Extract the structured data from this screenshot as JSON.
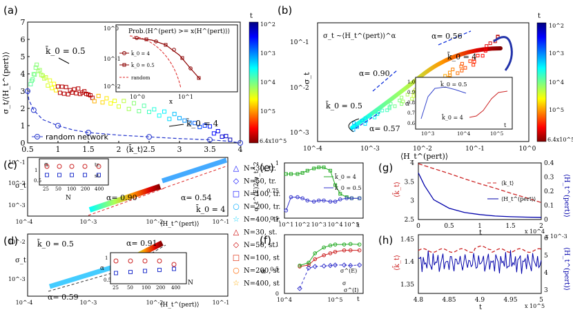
{
  "chart_data": [
    {
      "panel": "(a)",
      "type": "scatter",
      "xlabel": "⟨k̄_t⟩",
      "ylabel": "σ_t/⟨H_t^(pert)⟩",
      "xlim": [
        0.5,
        4
      ],
      "ylim": [
        0,
        7
      ],
      "xticks": [
        "0.5",
        "1",
        "1.5",
        "2",
        "2.5",
        "3",
        "3.5",
        "4"
      ],
      "yticks": [
        "0",
        "1",
        "2",
        "3",
        "4",
        "5",
        "6",
        "7"
      ],
      "annotations": [
        "k̄_0 = 0.5",
        "k̄_0 = 4"
      ],
      "legend": "random network",
      "series": [
        {
          "name": "random network",
          "style": "dashed-circles",
          "x": [
            0.5,
            0.52,
            0.6,
            0.75,
            1.0,
            1.25,
            1.5,
            2.0,
            2.5,
            3.0,
            3.5,
            3.8,
            4.0
          ],
          "y": [
            3.0,
            2.5,
            1.9,
            1.35,
            1.0,
            0.75,
            0.6,
            0.45,
            0.35,
            0.25,
            0.18,
            0.1,
            0.0
          ]
        },
        {
          "name": "k0=0.5 and k0=4 trajectories",
          "style": "colored-squares",
          "x": [
            0.55,
            0.65,
            0.8,
            1.0,
            1.2,
            1.4,
            1.6,
            2.0,
            2.5,
            3.0,
            3.5,
            3.9
          ],
          "y": [
            3.4,
            4.4,
            3.6,
            3.1,
            3.0,
            3.0,
            2.6,
            2.3,
            1.9,
            1.4,
            0.8,
            0.1
          ]
        }
      ],
      "inset": {
        "title": "Prob.⟨H^(pert) >= x⟨H^(pert)⟩⟩",
        "xlabel": "x",
        "xticks": [
          "10^0",
          "10^1"
        ],
        "yticks": [
          "10^0",
          "10^-1",
          "10^-2"
        ],
        "legend": [
          "k̄_0 = 4",
          "k̄_0 = 0.5",
          "random"
        ]
      },
      "colorbar": {
        "label": "t",
        "ticks": [
          "10^2",
          "10^3",
          "10^4",
          "10^5",
          "6.4x10^5"
        ]
      }
    },
    {
      "panel": "(b)",
      "type": "scatter",
      "xlabel": "⟨H_t^(pert)⟩",
      "ylabel": "σ_t",
      "xticks": [
        "10^-4",
        "10^-3",
        "10^-2",
        "10^-1",
        "10^0"
      ],
      "yticks": [
        "10^-3",
        "10^-2",
        "10^-1"
      ],
      "annotations": [
        "σ_t ~⟨H_t^(pert)⟩^α",
        "α= 0.56",
        "α= 0.90",
        "α= 0.57",
        "k̄_0 = 4",
        "k̄_0 = 0.5"
      ],
      "inset": {
        "yticks": [
          "0.6",
          "0.7",
          "0.8",
          "0.9",
          "1.0"
        ],
        "xticks": [
          "10^3",
          "10^4",
          "10^5"
        ],
        "xlabel": "t",
        "ylabel": "α",
        "labels": [
          "k̄_0 = 0.5",
          "k̄_0 = 4"
        ]
      },
      "colorbar": {
        "label": "t",
        "ticks": [
          "10^2",
          "10^3",
          "10^4",
          "10^5",
          "6.4x10^5"
        ]
      }
    },
    {
      "panel": "(c)",
      "type": "scatter",
      "xlabel": "⟨H_t^(pert)⟩",
      "ylabel": "σ_t",
      "xticks": [
        "10^-4",
        "10^-3",
        "10^-2",
        "10^-1"
      ],
      "yticks": [
        "10^-3",
        "10^-2",
        "10^-1"
      ],
      "annotations": [
        "α= 0.90",
        "α= 0.54",
        "k̄_0 = 4"
      ],
      "inset": {
        "xlabel": "N",
        "ylabel": "α",
        "xticks": [
          "25",
          "50",
          "100",
          "200",
          "400"
        ],
        "yticks": [
          "0.5",
          "1"
        ],
        "legend": [
          "tr.",
          "st."
        ]
      }
    },
    {
      "panel": "(d)",
      "type": "scatter",
      "xlabel": "⟨H_t^(pert)⟩",
      "ylabel": "σ_t",
      "xticks": [
        "10^-4",
        "10^-3",
        "10^-2",
        "10^-1"
      ],
      "yticks": [
        "10^-3",
        "10^-2"
      ],
      "annotations": [
        "k̄_0 = 0.5",
        "α= 0.91",
        "α= 0.59"
      ],
      "inset": {
        "xlabel": "N",
        "ylabel": "α",
        "xticks": [
          "25",
          "50",
          "100",
          "200",
          "400"
        ],
        "yticks": [
          "0.5",
          "1"
        ]
      }
    },
    {
      "panel": "legend_cd",
      "entries": [
        "N=30, tr.",
        "N=50, tr.",
        "N=100, tr.",
        "N=200, tr.",
        "N=400, tr.",
        "N=30, st.",
        "N=50, st.",
        "N=100, st",
        "N=200, st",
        "N=400, st"
      ],
      "colors": [
        "#0000ff",
        "#0000ff",
        "#0000ff",
        "#00aaff",
        "#00cfff",
        "#cc0000",
        "#cc0000",
        "#dd2200",
        "#ff6600",
        "#ffaa00"
      ],
      "markers": [
        "△",
        "◇",
        "□",
        "○",
        "☆",
        "△",
        "◇",
        "□",
        "○",
        "☆"
      ]
    },
    {
      "panel": "(e)",
      "type": "line",
      "xlabel": "t",
      "ylabel": "σ_t^(E)2/σ_t^2",
      "xticks": [
        "10^1",
        "10^2",
        "10^3",
        "10^4",
        "10^5"
      ],
      "yticks": [
        "0.5",
        "0.75",
        "1"
      ],
      "ylim": [
        0.5,
        1.0
      ],
      "series": [
        {
          "name": "k̄_0 = 4",
          "color": "#22aa22",
          "t": [
            10,
            20,
            50,
            100,
            200,
            500,
            1000,
            2000,
            5000,
            10000,
            20000,
            50000,
            100000,
            300000
          ],
          "y": [
            0.9,
            0.9,
            0.9,
            0.91,
            0.93,
            0.95,
            0.96,
            0.96,
            0.93,
            0.8,
            0.72,
            0.69,
            0.68,
            0.68
          ]
        },
        {
          "name": "k̄_0 = 0.5",
          "color": "#3333cc",
          "t": [
            10,
            20,
            50,
            100,
            200,
            500,
            1000,
            2000,
            5000,
            10000,
            20000,
            50000,
            100000,
            300000
          ],
          "y": [
            0.57,
            0.69,
            0.69,
            0.68,
            0.66,
            0.65,
            0.66,
            0.66,
            0.65,
            0.65,
            0.67,
            0.68,
            0.68,
            0.68
          ]
        }
      ]
    },
    {
      "panel": "(f)",
      "type": "line",
      "xlabel": "t",
      "ylabel": "α",
      "xticks": [
        "10^4",
        "10^5"
      ],
      "yticks": [
        "0",
        "0.5",
        "1"
      ],
      "ylim": [
        0,
        1.2
      ],
      "series": [
        {
          "name": "σ",
          "color": "#cc2222",
          "t": [
            20000,
            30000,
            40000,
            60000,
            80000,
            100000,
            150000,
            200000,
            300000
          ],
          "y": [
            0.55,
            0.58,
            0.7,
            0.78,
            0.82,
            0.85,
            0.88,
            0.88,
            0.88
          ]
        },
        {
          "name": "σ^(E)",
          "color": "#22aa22",
          "t": [
            20000,
            30000,
            40000,
            60000,
            80000,
            100000,
            150000,
            200000,
            300000
          ],
          "y": [
            0.57,
            0.63,
            0.82,
            0.94,
            0.98,
            1.0,
            1.0,
            1.01,
            1.0
          ]
        },
        {
          "name": "σ^(I)",
          "color": "#3333cc",
          "t": [
            20000,
            30000,
            40000,
            60000,
            80000,
            100000,
            150000,
            200000,
            300000
          ],
          "y": [
            0.1,
            0.52,
            0.55,
            0.56,
            0.57,
            0.58,
            0.58,
            0.57,
            0.58
          ]
        }
      ]
    },
    {
      "panel": "(g)",
      "type": "line",
      "xlabel": "t",
      "xunit": "x 10^4",
      "ylabel_left": "⟨k̄_t⟩",
      "ylabel_right": "⟨H_t^(pert)⟩",
      "xticks": [
        "0",
        "0.5",
        "1",
        "1.5",
        "2"
      ],
      "yticks_left": [
        "2.5",
        "3",
        "3.5",
        "4"
      ],
      "yticks_right": [
        "0",
        "0.1",
        "0.2",
        "0.3",
        "0.4"
      ],
      "legend": [
        "⟨k_t⟩",
        "⟨H_t^(pert)⟩"
      ],
      "series": [
        {
          "name": "⟨k_t⟩",
          "color": "#cc2222",
          "axis": "left",
          "t": [
            0,
            0.25,
            0.5,
            0.75,
            1.0,
            1.25,
            1.5,
            1.75,
            2.0
          ],
          "y": [
            3.98,
            3.85,
            3.72,
            3.58,
            3.45,
            3.33,
            3.2,
            3.08,
            2.95
          ]
        },
        {
          "name": "⟨H_t^(pert)⟩",
          "color": "#0000aa",
          "axis": "right",
          "t": [
            0,
            0.1,
            0.25,
            0.5,
            0.75,
            1.0,
            1.25,
            1.5,
            1.75,
            2.0
          ],
          "y": [
            0.33,
            0.24,
            0.14,
            0.08,
            0.05,
            0.035,
            0.025,
            0.02,
            0.017,
            0.015
          ]
        }
      ]
    },
    {
      "panel": "(h)",
      "type": "line",
      "xlabel": "t",
      "xunit": "x 10^5",
      "ylabel_left": "⟨k̄_t⟩",
      "ylabel_right": "⟨H_t^(pert)⟩",
      "yunit_right": "x 10^-3",
      "xticks": [
        "4.8",
        "4.85",
        "4.9",
        "4.95",
        "5"
      ],
      "yticks_left": [
        "1.35",
        "1.4",
        "1.45"
      ],
      "yticks_right": [
        "3",
        "4",
        "5",
        "6"
      ]
    }
  ]
}
